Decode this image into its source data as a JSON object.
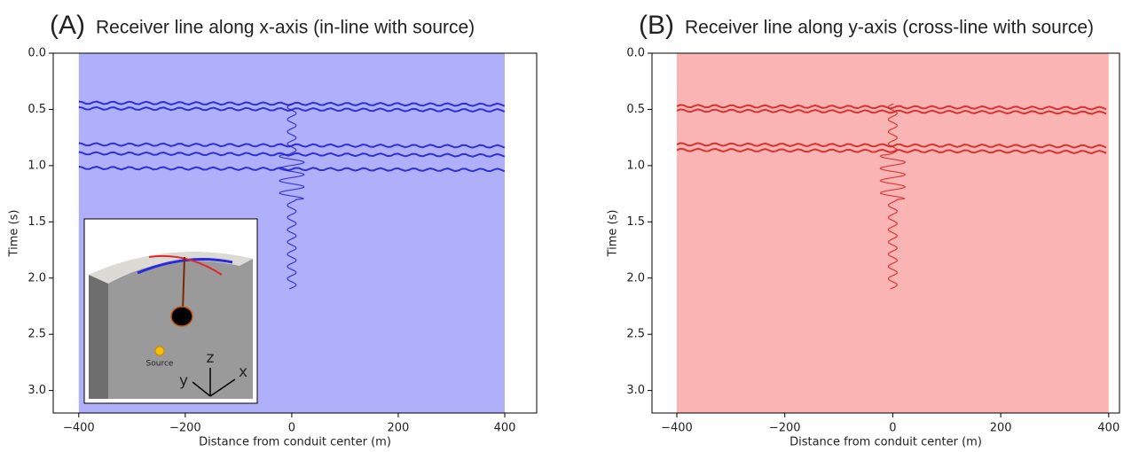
{
  "chart_data": [
    {
      "type": "wiggle",
      "panel_label": "(A)",
      "title": "Receiver line along x-axis (in-line with source)",
      "xlabel": "Distance from conduit center (m)",
      "ylabel": "Time (s)",
      "xlim": [
        -448,
        460
      ],
      "ylim": [
        3.2,
        0
      ],
      "xticks": [
        {
          "value": -400,
          "label": "−400"
        },
        {
          "value": -200,
          "label": "−200"
        },
        0,
        200,
        400
      ],
      "yticks": [
        {
          "value": 0,
          "label": "0.0"
        },
        0.5,
        {
          "value": 1,
          "label": "1.0"
        },
        1.5,
        {
          "value": 2,
          "label": "2.0"
        },
        2.5,
        {
          "value": 3,
          "label": "3.0"
        }
      ],
      "trace_extent": [
        -400,
        400
      ],
      "fill_color": "#b0b0fa",
      "wave_color": "#1a1acc",
      "arrivals": [
        0.45,
        0.5,
        0.82,
        0.9,
        1.03
      ],
      "center_wiggle": [
        0.45,
        2.1
      ],
      "inset": {
        "source_label": "Source",
        "axis_labels": [
          "z",
          "y",
          "x"
        ]
      }
    },
    {
      "type": "wiggle",
      "panel_label": "(B)",
      "title": "Receiver line along y-axis (cross-line with source)",
      "xlabel": "Distance from conduit center (m)",
      "ylabel": "Time (s)",
      "xlim": [
        -446,
        420
      ],
      "ylim": [
        3.2,
        0
      ],
      "xticks": [
        {
          "value": -400,
          "label": "−400"
        },
        {
          "value": -200,
          "label": "−200"
        },
        0,
        200,
        400
      ],
      "yticks": [
        {
          "value": 0,
          "label": "0.0"
        },
        0.5,
        {
          "value": 1,
          "label": "1.0"
        },
        1.5,
        {
          "value": 2,
          "label": "2.0"
        },
        2.5,
        {
          "value": 3,
          "label": "3.0"
        }
      ],
      "trace_extent": [
        -400,
        400
      ],
      "fill_color": "#fbb4b4",
      "wave_color": "#d01c1c",
      "arrivals": [
        0.48,
        0.52,
        0.82,
        0.87
      ],
      "center_wiggle": [
        0.45,
        2.1
      ]
    }
  ]
}
